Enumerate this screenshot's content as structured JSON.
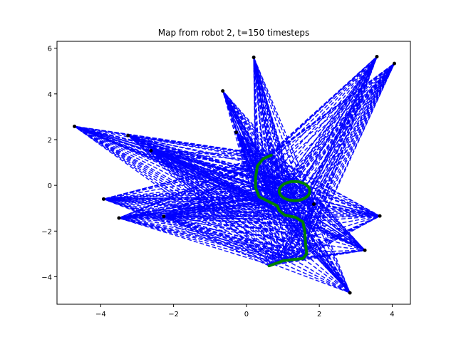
{
  "chart_data": {
    "type": "line",
    "title": "Map from robot 2, t=150 timesteps",
    "xlabel": "",
    "ylabel": "",
    "xlim": [
      -5.2,
      4.5
    ],
    "ylim": [
      -5.2,
      6.3
    ],
    "xticks": [
      -4,
      -2,
      0,
      2,
      4
    ],
    "yticks": [
      -4,
      -2,
      0,
      2,
      4,
      6
    ],
    "grid": false,
    "colors": {
      "landmark_lines": "#0000ff",
      "landmarks": "#000000",
      "trajectory": "#008000"
    },
    "landmarks": [
      {
        "x": -4.72,
        "y": 2.58
      },
      {
        "x": -3.25,
        "y": 2.18
      },
      {
        "x": -2.62,
        "y": 1.52
      },
      {
        "x": -3.92,
        "y": -0.6
      },
      {
        "x": -3.5,
        "y": -1.43
      },
      {
        "x": -2.27,
        "y": -1.36
      },
      {
        "x": -0.65,
        "y": 4.13
      },
      {
        "x": -0.28,
        "y": 2.32
      },
      {
        "x": 0.2,
        "y": 5.6
      },
      {
        "x": 3.58,
        "y": 5.63
      },
      {
        "x": 4.06,
        "y": 5.33
      },
      {
        "x": 3.66,
        "y": -1.34
      },
      {
        "x": 3.25,
        "y": -2.84
      },
      {
        "x": 2.84,
        "y": -4.7
      },
      {
        "x": 1.85,
        "y": -0.82
      }
    ],
    "trajectory": [
      {
        "x": 0.62,
        "y": -3.52
      },
      {
        "x": 0.8,
        "y": -3.42
      },
      {
        "x": 1.0,
        "y": -3.3
      },
      {
        "x": 1.25,
        "y": -3.25
      },
      {
        "x": 1.55,
        "y": -3.2
      },
      {
        "x": 1.65,
        "y": -3.0
      },
      {
        "x": 1.62,
        "y": -2.5
      },
      {
        "x": 1.6,
        "y": -2.0
      },
      {
        "x": 1.55,
        "y": -1.6
      },
      {
        "x": 1.35,
        "y": -1.4
      },
      {
        "x": 1.05,
        "y": -1.3
      },
      {
        "x": 0.9,
        "y": -1.1
      },
      {
        "x": 0.85,
        "y": -0.9
      },
      {
        "x": 0.6,
        "y": -0.7
      },
      {
        "x": 0.35,
        "y": -0.5
      },
      {
        "x": 0.25,
        "y": -0.1
      },
      {
        "x": 0.25,
        "y": 0.35
      },
      {
        "x": 0.3,
        "y": 0.85
      },
      {
        "x": 0.45,
        "y": 1.15
      },
      {
        "x": 0.65,
        "y": 1.3
      },
      {
        "x": 0.68,
        "y": 1.32
      }
    ],
    "loop": {
      "cx": 1.32,
      "cy": -0.25,
      "rx": 0.42,
      "ry": 0.42
    }
  }
}
